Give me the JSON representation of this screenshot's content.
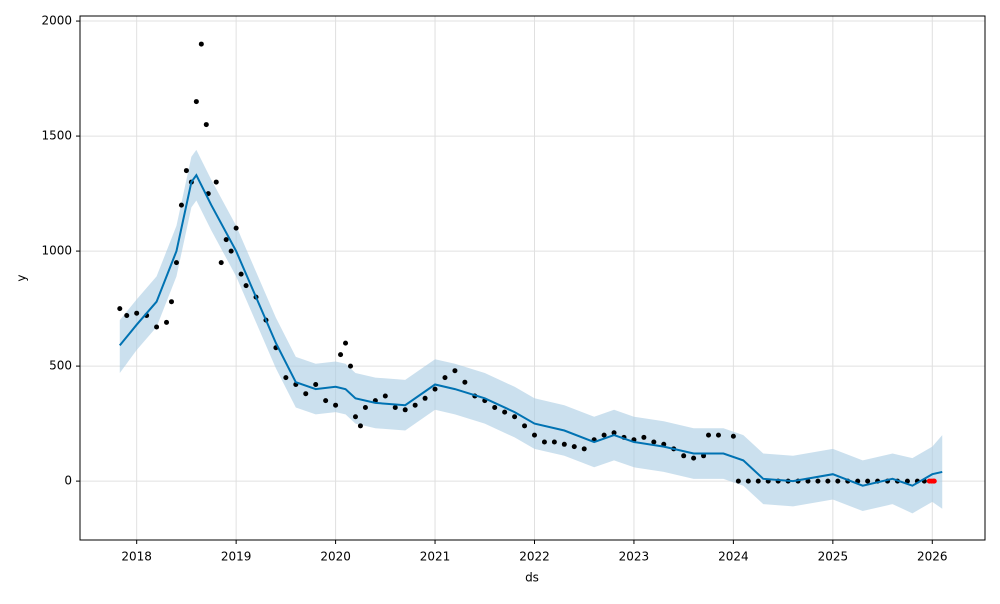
{
  "chart_data": {
    "type": "forecast",
    "x_label": "ds",
    "y_label": "y",
    "xlim": [
      2017.43,
      2026.53
    ],
    "ylim": [
      -256,
      2022
    ],
    "xticks": [
      2018,
      2019,
      2020,
      2021,
      2022,
      2023,
      2024,
      2025,
      2026
    ],
    "yticks": [
      0,
      500,
      1000,
      1500,
      2000
    ],
    "grid": true,
    "observed": {
      "color": "#000000",
      "x": [
        2017.83,
        2017.9,
        2018.0,
        2018.1,
        2018.2,
        2018.3,
        2018.35,
        2018.4,
        2018.45,
        2018.5,
        2018.55,
        2018.6,
        2018.65,
        2018.7,
        2018.72,
        2018.8,
        2018.85,
        2018.9,
        2018.95,
        2019.0,
        2019.05,
        2019.1,
        2019.2,
        2019.3,
        2019.4,
        2019.5,
        2019.6,
        2019.7,
        2019.8,
        2019.9,
        2020.0,
        2020.05,
        2020.1,
        2020.15,
        2020.2,
        2020.25,
        2020.3,
        2020.4,
        2020.5,
        2020.6,
        2020.7,
        2020.8,
        2020.9,
        2021.0,
        2021.1,
        2021.2,
        2021.3,
        2021.4,
        2021.5,
        2021.6,
        2021.7,
        2021.8,
        2021.9,
        2022.0,
        2022.1,
        2022.2,
        2022.3,
        2022.4,
        2022.5,
        2022.6,
        2022.7,
        2022.8,
        2022.9,
        2023.0,
        2023.1,
        2023.2,
        2023.3,
        2023.4,
        2023.5,
        2023.6,
        2023.7,
        2023.75,
        2023.85,
        2024.0,
        2024.05,
        2024.15,
        2024.25,
        2024.35,
        2024.45,
        2024.55,
        2024.65,
        2024.75,
        2024.85,
        2024.95,
        2025.05,
        2025.15,
        2025.25,
        2025.35,
        2025.45,
        2025.55,
        2025.65,
        2025.75,
        2025.85,
        2025.92
      ],
      "values": [
        750,
        720,
        730,
        720,
        670,
        690,
        780,
        950,
        1200,
        1350,
        1300,
        1650,
        1900,
        1550,
        1250,
        1300,
        950,
        1050,
        1000,
        1100,
        900,
        850,
        800,
        700,
        580,
        450,
        420,
        380,
        420,
        350,
        330,
        550,
        600,
        500,
        280,
        240,
        320,
        350,
        370,
        320,
        310,
        330,
        360,
        400,
        450,
        480,
        430,
        370,
        350,
        320,
        300,
        280,
        240,
        200,
        170,
        170,
        160,
        150,
        140,
        180,
        200,
        210,
        190,
        180,
        190,
        170,
        160,
        140,
        110,
        100,
        110,
        200,
        200,
        195,
        0,
        0,
        0,
        0,
        0,
        0,
        0,
        0,
        0,
        0,
        0,
        0,
        0,
        0,
        0,
        0,
        0,
        0,
        0,
        0
      ]
    },
    "forecast": {
      "color": "#0072b2",
      "band_color": "#a9cce3",
      "x": [
        2017.83,
        2018.0,
        2018.2,
        2018.4,
        2018.55,
        2018.6,
        2018.75,
        2019.0,
        2019.2,
        2019.4,
        2019.6,
        2019.8,
        2020.0,
        2020.1,
        2020.2,
        2020.4,
        2020.7,
        2021.0,
        2021.2,
        2021.5,
        2021.8,
        2022.0,
        2022.3,
        2022.6,
        2022.8,
        2023.0,
        2023.3,
        2023.6,
        2023.9,
        2024.1,
        2024.3,
        2024.6,
        2025.0,
        2025.3,
        2025.6,
        2025.8,
        2026.0,
        2026.1
      ],
      "values": [
        590,
        680,
        780,
        1000,
        1300,
        1330,
        1200,
        1000,
        800,
        600,
        430,
        400,
        410,
        400,
        360,
        340,
        330,
        420,
        400,
        360,
        300,
        250,
        220,
        170,
        200,
        170,
        150,
        120,
        120,
        90,
        10,
        0,
        30,
        -20,
        10,
        -20,
        30,
        40
      ],
      "lower": [
        470,
        570,
        670,
        890,
        1190,
        1220,
        1090,
        890,
        690,
        490,
        320,
        290,
        300,
        290,
        250,
        230,
        220,
        310,
        290,
        250,
        190,
        140,
        110,
        60,
        90,
        60,
        40,
        10,
        10,
        -20,
        -100,
        -110,
        -80,
        -130,
        -100,
        -140,
        -90,
        -120
      ],
      "upper": [
        700,
        790,
        890,
        1110,
        1410,
        1440,
        1310,
        1110,
        910,
        710,
        540,
        510,
        520,
        510,
        470,
        450,
        440,
        530,
        510,
        470,
        410,
        360,
        330,
        280,
        310,
        280,
        260,
        230,
        230,
        200,
        120,
        110,
        140,
        90,
        120,
        100,
        150,
        200
      ]
    },
    "future": {
      "color": "#ff0000",
      "x": [
        2025.97,
        2025.99,
        2026.01,
        2026.02
      ],
      "values": [
        0,
        0,
        0,
        0
      ]
    }
  }
}
